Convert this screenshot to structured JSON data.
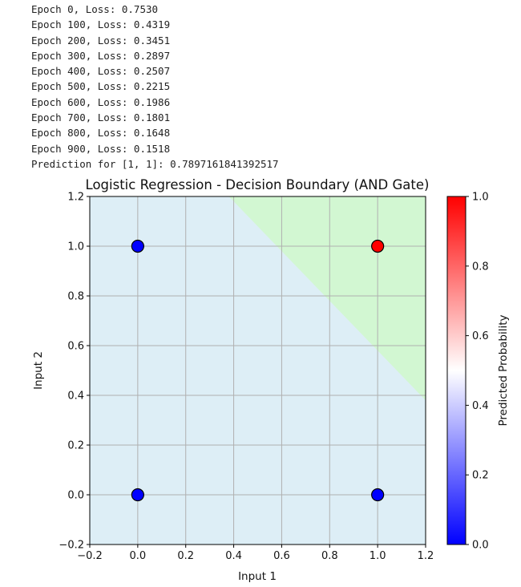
{
  "console": {
    "lines": [
      "Epoch 0, Loss: 0.7530",
      "Epoch 100, Loss: 0.4319",
      "Epoch 200, Loss: 0.3451",
      "Epoch 300, Loss: 0.2897",
      "Epoch 400, Loss: 0.2507",
      "Epoch 500, Loss: 0.2215",
      "Epoch 600, Loss: 0.1986",
      "Epoch 700, Loss: 0.1801",
      "Epoch 800, Loss: 0.1648",
      "Epoch 900, Loss: 0.1518",
      "Prediction for [1, 1]: 0.7897161841392517"
    ]
  },
  "chart_data": {
    "type": "scatter",
    "title": "Logistic Regression - Decision Boundary (AND Gate)",
    "xlabel": "Input 1",
    "ylabel": "Input 2",
    "xlim": [
      -0.2,
      1.2
    ],
    "ylim": [
      -0.2,
      1.2
    ],
    "xticks": [
      "−0.2",
      "0.0",
      "0.2",
      "0.4",
      "0.6",
      "0.8",
      "1.0",
      "1.2"
    ],
    "yticks": [
      "−0.2",
      "0.0",
      "0.2",
      "0.4",
      "0.6",
      "0.8",
      "1.0",
      "1.2"
    ],
    "xtick_values": [
      -0.2,
      0.0,
      0.2,
      0.4,
      0.6,
      0.8,
      1.0,
      1.2
    ],
    "ytick_values": [
      -0.2,
      0.0,
      0.2,
      0.4,
      0.6,
      0.8,
      1.0,
      1.2
    ],
    "grid": true,
    "points": [
      {
        "x": 0,
        "y": 0,
        "label": 0
      },
      {
        "x": 0,
        "y": 1,
        "label": 0
      },
      {
        "x": 1,
        "y": 0,
        "label": 0
      },
      {
        "x": 1,
        "y": 1,
        "label": 1
      }
    ],
    "decision_boundary": [
      [
        0.38,
        1.2
      ],
      [
        1.2,
        0.38
      ]
    ],
    "regions": {
      "class0_color": "#ddeef6",
      "class1_color": "#d2f7d2"
    },
    "point_colors": {
      "class0": "#0000ff",
      "class1": "#ff0000"
    },
    "colorbar": {
      "label": "Predicted Probability",
      "range": [
        0.0,
        1.0
      ],
      "ticks": [
        "0.0",
        "0.2",
        "0.4",
        "0.6",
        "0.8",
        "1.0"
      ],
      "tick_values": [
        0.0,
        0.2,
        0.4,
        0.6,
        0.8,
        1.0
      ],
      "colormap": "bwr",
      "colors": [
        "#0000ff",
        "#ffffff",
        "#ff0000"
      ]
    }
  }
}
